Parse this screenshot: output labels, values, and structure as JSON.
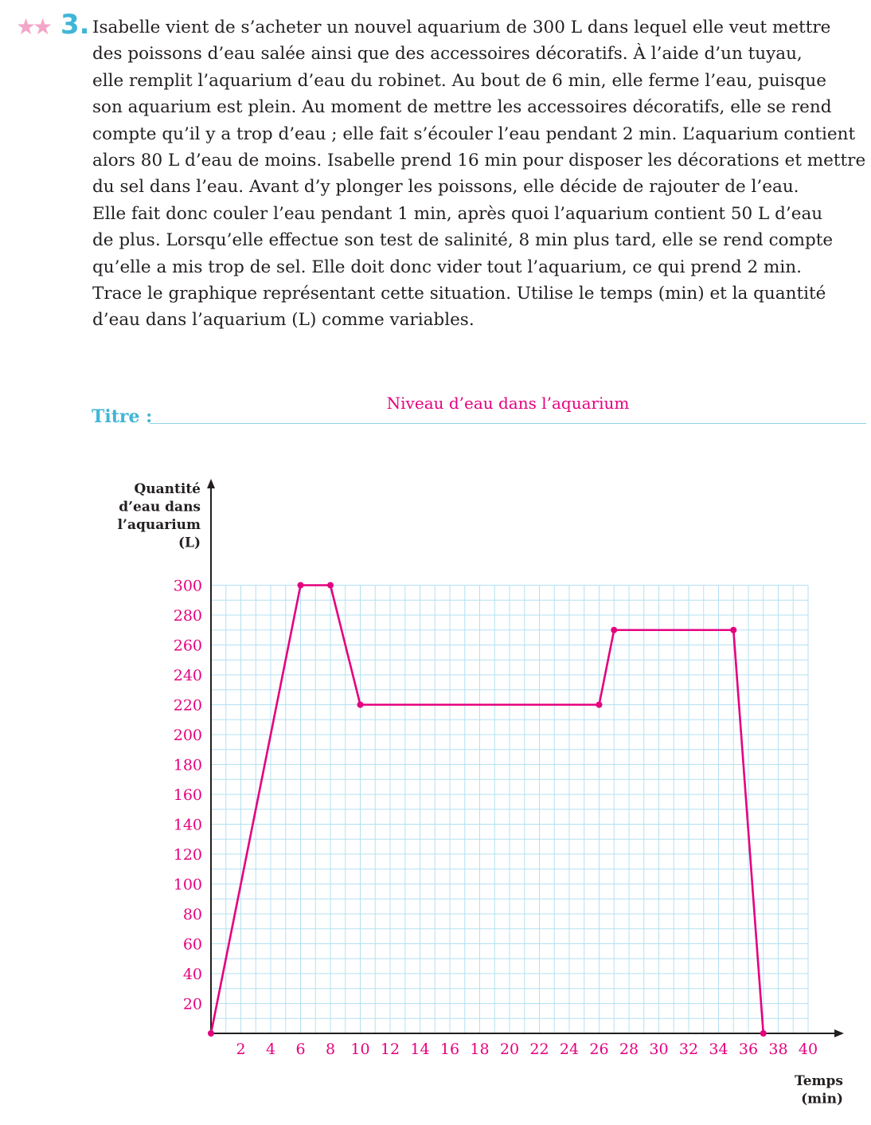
{
  "exercise": {
    "number": "3.",
    "difficulty_stars": 2,
    "star_color": "#f4a6c8",
    "number_color": "#3fb6d6",
    "statement_lines": [
      "Isabelle vient de s’acheter un nouvel aquarium de 300 L dans lequel elle veut mettre",
      "des poissons d’eau salée ainsi que des accessoires décoratifs. À l’aide d’un tuyau,",
      "elle remplit l’aquarium d’eau du robinet. Au bout de 6 min, elle ferme l’eau, puisque",
      "son aquarium est plein. Au moment de mettre les accessoires décoratifs, elle se rend",
      "compte qu’il y a trop d’eau ; elle fait s’écouler l’eau pendant 2 min. L’aquarium contient",
      "alors 80 L d’eau de moins. Isabelle prend 16 min pour disposer les décorations et mettre",
      "du sel dans l’eau. Avant d’y plonger les poissons, elle décide de rajouter de l’eau.",
      "Elle fait donc couler l’eau pendant 1 min, après quoi l’aquarium contient 50 L d’eau",
      "de plus. Lorsqu’elle effectue son test de salinité, 8 min plus tard, elle se rend compte",
      "qu’elle a mis trop de sel. Elle doit donc vider tout l’aquarium, ce qui prend 2 min.",
      "Trace le graphique représentant cette situation. Utilise le temps (min) et la quantité",
      "d’eau dans l’aquarium (L) comme variables."
    ]
  },
  "title_field": {
    "label": "Titre :",
    "answer": "Niveau d’eau dans l’aquarium",
    "label_color": "#3fb6d6",
    "answer_color": "#e5007e"
  },
  "chart_data": {
    "type": "line",
    "title": "Niveau d’eau dans l’aquarium",
    "xlabel": "Temps (min)",
    "ylabel": "Quantité d’eau dans l’aquarium (L)",
    "xlabel_lines": [
      "Temps",
      "(min)"
    ],
    "ylabel_lines": [
      "Quantité",
      "d’eau dans",
      "l’aquarium",
      "(L)"
    ],
    "xlim": [
      0,
      40
    ],
    "ylim": [
      0,
      300
    ],
    "x_ticks": [
      2,
      4,
      6,
      8,
      10,
      12,
      14,
      16,
      18,
      20,
      22,
      24,
      26,
      28,
      30,
      32,
      34,
      36,
      38,
      40
    ],
    "y_ticks": [
      20,
      40,
      60,
      80,
      100,
      120,
      140,
      160,
      180,
      200,
      220,
      240,
      260,
      280,
      300
    ],
    "grid": true,
    "grid_minor_step_x": 2,
    "grid_minor_step_y": 20,
    "series": [
      {
        "x": [
          0,
          6,
          8,
          10,
          26,
          27,
          35,
          37
        ],
        "y": [
          0,
          300,
          300,
          220,
          220,
          270,
          270,
          0
        ],
        "color": "#e5007e",
        "markers": true
      }
    ],
    "colors": {
      "grid": "#b3e0f2",
      "axis": "#231f20",
      "line": "#e5007e",
      "tick_labels": "#e5007e"
    }
  }
}
